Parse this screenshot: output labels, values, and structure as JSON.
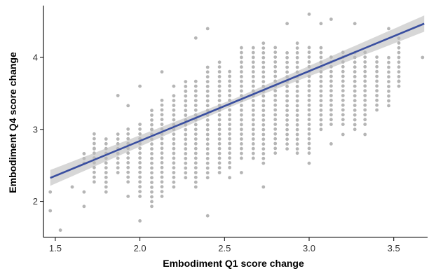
{
  "chart_data": {
    "type": "scatter",
    "title": "",
    "xlabel": "Embodiment Q1 score change",
    "ylabel": "Embodiment Q4 score change",
    "xlim": [
      1.43,
      3.7
    ],
    "ylim": [
      1.5,
      4.72
    ],
    "x_ticks": [
      "1.5",
      "2.0",
      "2.5",
      "3.0",
      "3.5"
    ],
    "y_ticks": [
      "2",
      "3",
      "4"
    ],
    "grid": false,
    "x_step": 0.0667,
    "y_step": 0.0667,
    "point_color": "#b5b5b5",
    "fit_color": "#3a4fa0",
    "band_color": "#bdbdbd",
    "fit": {
      "intercept": 0.9,
      "slope": 0.97,
      "se_center": 0.045,
      "se_slope": 0.06,
      "x_mean": 2.55
    },
    "sparse_points": [
      [
        1.47,
        2.13
      ],
      [
        1.47,
        1.87
      ],
      [
        1.53,
        1.6
      ],
      [
        1.6,
        2.2
      ],
      [
        1.67,
        2.13
      ],
      [
        1.67,
        1.93
      ],
      [
        1.73,
        2.73
      ],
      [
        1.8,
        2.13
      ],
      [
        1.87,
        3.47
      ],
      [
        1.93,
        3.33
      ],
      [
        1.93,
        2.07
      ],
      [
        2.0,
        3.6
      ],
      [
        2.0,
        1.73
      ],
      [
        2.07,
        3.0
      ],
      [
        2.13,
        3.8
      ],
      [
        2.2,
        3.6
      ],
      [
        2.27,
        3.53
      ],
      [
        2.33,
        4.27
      ],
      [
        2.4,
        4.4
      ],
      [
        2.4,
        1.8
      ],
      [
        2.53,
        2.33
      ],
      [
        2.6,
        2.4
      ],
      [
        2.73,
        2.2
      ],
      [
        2.87,
        4.47
      ],
      [
        2.93,
        2.67
      ],
      [
        3.0,
        4.6
      ],
      [
        3.0,
        2.53
      ],
      [
        3.13,
        4.53
      ],
      [
        3.13,
        2.8
      ],
      [
        3.2,
        2.93
      ],
      [
        3.27,
        4.47
      ],
      [
        3.33,
        2.93
      ],
      [
        3.47,
        4.4
      ],
      [
        3.53,
        3.67
      ],
      [
        3.67,
        4.0
      ],
      [
        3.07,
        4.47
      ]
    ],
    "columns": [
      {
        "x": 1.67,
        "y_range": [
          2.53,
          2.67
        ]
      },
      {
        "x": 1.73,
        "y_range": [
          2.27,
          3.0
        ]
      },
      {
        "x": 1.8,
        "y_range": [
          2.2,
          2.93
        ]
      },
      {
        "x": 1.87,
        "y_range": [
          2.4,
          3.0
        ]
      },
      {
        "x": 1.93,
        "y_range": [
          2.27,
          3.07
        ]
      },
      {
        "x": 2.0,
        "y_range": [
          2.07,
          3.13
        ]
      },
      {
        "x": 2.07,
        "y_range": [
          1.93,
          3.33
        ]
      },
      {
        "x": 2.13,
        "y_range": [
          2.07,
          3.47
        ]
      },
      {
        "x": 2.2,
        "y_range": [
          2.2,
          3.53
        ]
      },
      {
        "x": 2.27,
        "y_range": [
          2.33,
          3.73
        ]
      },
      {
        "x": 2.33,
        "y_range": [
          2.2,
          3.67
        ]
      },
      {
        "x": 2.4,
        "y_range": [
          2.33,
          3.87
        ]
      },
      {
        "x": 2.47,
        "y_range": [
          2.4,
          4.0
        ]
      },
      {
        "x": 2.53,
        "y_range": [
          2.47,
          3.87
        ]
      },
      {
        "x": 2.6,
        "y_range": [
          2.6,
          4.2
        ]
      },
      {
        "x": 2.67,
        "y_range": [
          2.6,
          4.2
        ]
      },
      {
        "x": 2.73,
        "y_range": [
          2.53,
          4.2
        ]
      },
      {
        "x": 2.8,
        "y_range": [
          2.67,
          4.2
        ]
      },
      {
        "x": 2.87,
        "y_range": [
          2.73,
          4.13
        ]
      },
      {
        "x": 2.93,
        "y_range": [
          2.73,
          4.2
        ]
      },
      {
        "x": 3.0,
        "y_range": [
          2.67,
          4.2
        ]
      },
      {
        "x": 3.07,
        "y_range": [
          3.0,
          4.2
        ]
      },
      {
        "x": 3.13,
        "y_range": [
          3.07,
          4.07
        ]
      },
      {
        "x": 3.2,
        "y_range": [
          3.07,
          4.13
        ]
      },
      {
        "x": 3.27,
        "y_range": [
          3.0,
          4.07
        ]
      },
      {
        "x": 3.33,
        "y_range": [
          3.07,
          4.13
        ]
      },
      {
        "x": 3.4,
        "y_range": [
          3.27,
          4.07
        ]
      },
      {
        "x": 3.47,
        "y_range": [
          3.33,
          4.0
        ]
      },
      {
        "x": 3.53,
        "y_range": [
          3.6,
          4.27
        ]
      }
    ]
  }
}
